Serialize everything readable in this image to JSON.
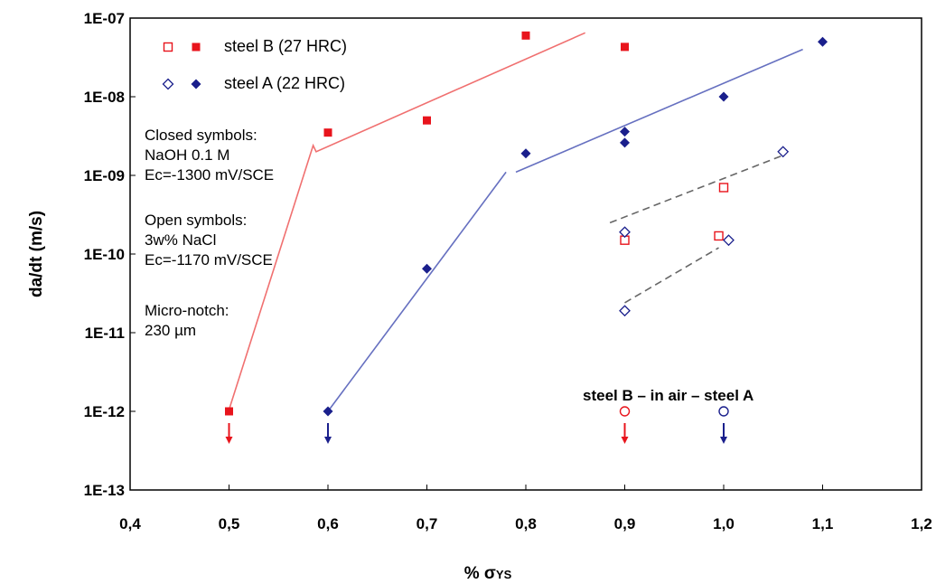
{
  "chart_data": {
    "type": "scatter",
    "xlabel": "% σYS",
    "xlabel_parts": {
      "main": "% σ",
      "sub": "YS"
    },
    "ylabel": "da/dt (m/s)",
    "xlim": [
      0.4,
      1.2
    ],
    "ylim": [
      1e-13,
      1e-07
    ],
    "y_scale": "log",
    "grid": false,
    "legend_position": "top-left",
    "x_ticks": [
      "0,4",
      "0,5",
      "0,6",
      "0,7",
      "0,8",
      "0,9",
      "1,0",
      "1,1",
      "1,2"
    ],
    "y_ticks": [
      "1E-07",
      "1E-08",
      "1E-09",
      "1E-10",
      "1E-11",
      "1E-12",
      "1E-13"
    ],
    "legend": [
      {
        "label": "steel B (27 HRC)",
        "color": "#e8141c"
      },
      {
        "label": "steel A (22 HRC)",
        "color": "#1a1f8c"
      }
    ],
    "annotations": {
      "closed": [
        "Closed symbols:",
        "NaOH 0.1 M",
        "Ec=-1300 mV/SCE"
      ],
      "open": [
        "Open symbols:",
        "3w% NaCl",
        "Ec=-1170 mV/SCE"
      ],
      "notch": [
        "Micro-notch:",
        "230 µm"
      ],
      "air": "steel B – in air – steel A"
    },
    "series": [
      {
        "name": "steel B (27 HRC)",
        "environment": "NaOH 0.1 M",
        "marker": "filled-square",
        "color": "#e8141c",
        "points": [
          {
            "x": 0.5,
            "y": 1e-12,
            "arrow": true
          },
          {
            "x": 0.6,
            "y": 3.5e-09
          },
          {
            "x": 0.7,
            "y": 5e-09
          },
          {
            "x": 0.8,
            "y": 6e-08
          },
          {
            "x": 0.9,
            "y": 4.3e-08
          }
        ]
      },
      {
        "name": "steel A (22 HRC)",
        "environment": "NaOH 0.1 M",
        "marker": "filled-diamond",
        "color": "#1a1f8c",
        "points": [
          {
            "x": 0.6,
            "y": 1e-12,
            "arrow": true
          },
          {
            "x": 0.7,
            "y": 6.5e-11
          },
          {
            "x": 0.8,
            "y": 1.9e-09
          },
          {
            "x": 0.9,
            "y": 3.6e-09
          },
          {
            "x": 0.9,
            "y": 2.6e-09
          },
          {
            "x": 1.0,
            "y": 1e-08
          },
          {
            "x": 1.1,
            "y": 5e-08
          }
        ]
      },
      {
        "name": "steel B (27 HRC)",
        "environment": "3w% NaCl",
        "marker": "open-square",
        "color": "#e8141c",
        "points": [
          {
            "x": 0.9,
            "y": 1.5e-10
          },
          {
            "x": 0.995,
            "y": 1.7e-10
          },
          {
            "x": 1.0,
            "y": 7e-10
          }
        ]
      },
      {
        "name": "steel A (22 HRC)",
        "environment": "3w% NaCl",
        "marker": "open-diamond",
        "color": "#1a1f8c",
        "points": [
          {
            "x": 0.9,
            "y": 1.9e-11
          },
          {
            "x": 0.9,
            "y": 1.9e-10
          },
          {
            "x": 1.005,
            "y": 1.5e-10
          },
          {
            "x": 1.06,
            "y": 2e-09
          }
        ]
      },
      {
        "name": "steel B (27 HRC)",
        "environment": "in air",
        "marker": "open-circle",
        "color": "#e8141c",
        "points": [
          {
            "x": 0.9,
            "y": 1e-12,
            "arrow": true
          }
        ]
      },
      {
        "name": "steel A (22 HRC)",
        "environment": "in air",
        "marker": "open-circle",
        "color": "#1a1f8c",
        "points": [
          {
            "x": 1.0,
            "y": 1e-12,
            "arrow": true
          }
        ]
      }
    ],
    "trend_lines": [
      {
        "color": "#f07070",
        "style": "solid",
        "points": [
          [
            0.5,
            1.05e-12
          ],
          [
            0.585,
            2.4e-09
          ],
          [
            0.588,
            2e-09
          ],
          [
            0.86,
            6.5e-08
          ]
        ]
      },
      {
        "color": "#6670c0",
        "style": "solid",
        "points": [
          [
            0.6,
            1e-12
          ],
          [
            0.78,
            1.1e-09
          ]
        ]
      },
      {
        "color": "#6670c0",
        "style": "solid",
        "points": [
          [
            0.79,
            1.1e-09
          ],
          [
            1.08,
            4e-08
          ]
        ]
      },
      {
        "color": "#666666",
        "style": "dashed",
        "points": [
          [
            0.885,
            2.5e-10
          ],
          [
            1.06,
            1.8e-09
          ]
        ]
      },
      {
        "color": "#666666",
        "style": "dashed",
        "points": [
          [
            0.9,
            2.4e-11
          ],
          [
            0.995,
            1.2e-10
          ]
        ]
      }
    ]
  }
}
